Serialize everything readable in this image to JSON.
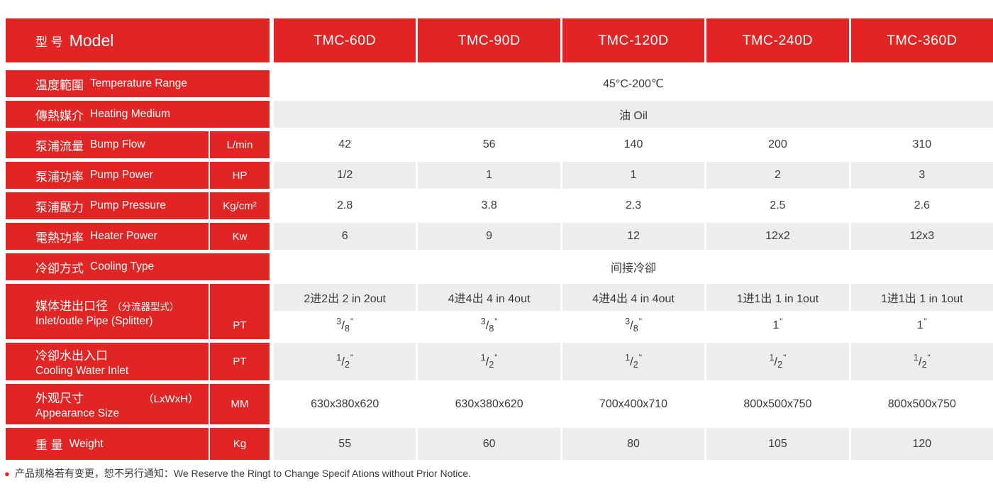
{
  "colors": {
    "red": "#e02524",
    "gray_cell": "#ededed",
    "text": "#3b3b3b"
  },
  "symbols": {
    "inch": "\"",
    "slash": "/",
    "bullet": "●"
  },
  "header": {
    "label_zh": "型 号",
    "label_en": "Model",
    "models": [
      "TMC-60D",
      "TMC-90D",
      "TMC-120D",
      "TMC-240D",
      "TMC-360D"
    ]
  },
  "rows": {
    "temperature": {
      "zh": "温度範圍",
      "en": "Temperature Range",
      "value": "45°C-200℃"
    },
    "medium": {
      "zh": "傳熱媒介",
      "en": "Heating Medium",
      "value": "油 Oil"
    },
    "bump_flow": {
      "zh": "泵浦流量",
      "en": "Bump Flow",
      "unit": "L/min",
      "values": [
        "42",
        "56",
        "140",
        "200",
        "310"
      ]
    },
    "pump_power": {
      "zh": "泵浦功率",
      "en": "Pump Power",
      "unit": "HP",
      "values": [
        "1/2",
        "1",
        "1",
        "2",
        "3"
      ]
    },
    "pump_pressure": {
      "zh": "泵浦壓力",
      "en": "Pump Pressure",
      "unit": "Kg/cm²",
      "values": [
        "2.8",
        "3.8",
        "2.3",
        "2.5",
        "2.6"
      ]
    },
    "heater_power": {
      "zh": "電熱功率",
      "en": "Heater Power",
      "unit": "Kw",
      "values": [
        "6",
        "9",
        "12",
        "12x2",
        "12x3"
      ]
    },
    "cooling_type": {
      "zh": "冷卻方式",
      "en": "Cooling Type",
      "value": "间接冷卻"
    },
    "pipe": {
      "zh": "媒体进出口径",
      "paren": "（分流器型式）",
      "en": "Inlet/outle Pipe (Splitter)",
      "unit": "PT",
      "inout": [
        "2进2出 2 in 2out",
        "4进4出 4 in 4out",
        "4进4出 4 in 4out",
        "1进1出 1 in 1out",
        "1进1出 1 in 1out"
      ],
      "sizes": [
        {
          "num": "3",
          "den": "8"
        },
        {
          "num": "3",
          "den": "8"
        },
        {
          "num": "3",
          "den": "8"
        },
        {
          "whole": "1"
        },
        {
          "whole": "1"
        }
      ]
    },
    "water": {
      "zh": "冷卻水出入口",
      "en": "Cooling Water Inlet",
      "unit": "PT",
      "sizes": [
        {
          "num": "1",
          "den": "2"
        },
        {
          "num": "1",
          "den": "2"
        },
        {
          "num": "1",
          "den": "2"
        },
        {
          "num": "1",
          "den": "2"
        },
        {
          "num": "1",
          "den": "2"
        }
      ]
    },
    "appearance": {
      "zh": "外观尺寸",
      "paren": "（LxWxH）",
      "en": "Appearance Size",
      "unit": "MM",
      "values": [
        "630x380x620",
        "630x380x620",
        "700x400x710",
        "800x500x750",
        "800x500x750"
      ]
    },
    "weight": {
      "zh": "重 量",
      "en": "Weight",
      "unit": "Kg",
      "values": [
        "55",
        "60",
        "80",
        "105",
        "120"
      ]
    }
  },
  "footer": {
    "note_zh": "产品规格若有变更，恕不另行通知：",
    "note_en": "We Reserve the Ringt to Change Specif Ations without Prior Notice."
  }
}
